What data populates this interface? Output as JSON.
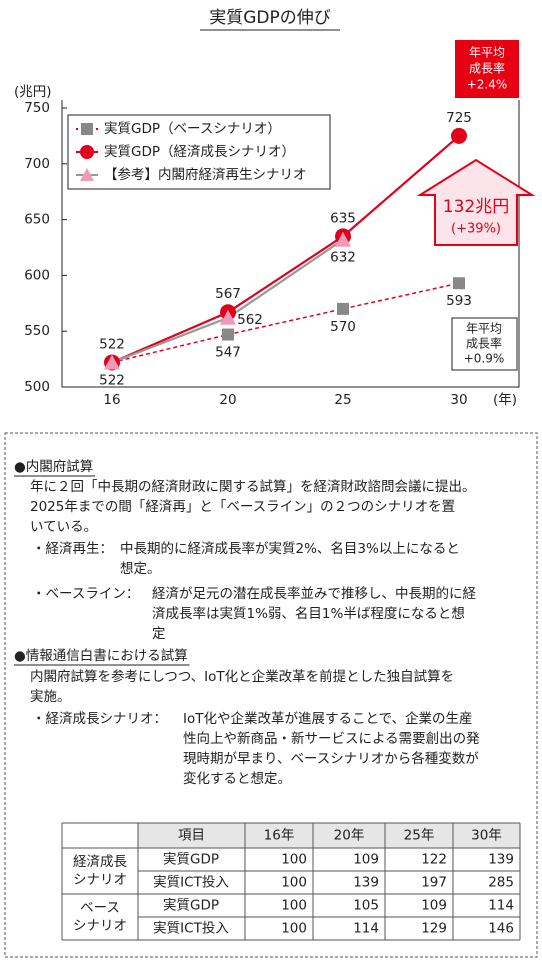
{
  "chart_data": {
    "type": "line",
    "title": "実質GDPの伸び",
    "y_label": "(兆円)",
    "x_label": "(年)",
    "categories": [
      "16",
      "20",
      "25",
      "30"
    ],
    "ylim": [
      500,
      750
    ],
    "yticks": [
      500,
      550,
      600,
      650,
      700,
      750
    ],
    "legend": "upper left",
    "series": [
      {
        "name": "実質GDP（ベースシナリオ）",
        "color": "#888888",
        "line_style": "dashed",
        "line_color": "#e0001b",
        "marker": "square",
        "values": [
          522,
          547,
          570,
          593
        ]
      },
      {
        "name": "実質GDP（経済成長シナリオ）",
        "color": "#e0001b",
        "line_style": "solid",
        "marker": "circle",
        "values": [
          522,
          567,
          635,
          725
        ]
      },
      {
        "name": "【参考】内閣府経済再生シナリオ",
        "color": "#f09ab8",
        "line_style": "solid",
        "line_color": "#999999",
        "marker": "triangle",
        "values": [
          522,
          562,
          632,
          null
        ]
      }
    ],
    "annotations": [
      {
        "lines": [
          "年平均",
          "成長率",
          "+2.4%"
        ]
      },
      {
        "lines": [
          "132兆円",
          "(+39%)"
        ]
      },
      {
        "lines": [
          "年平均",
          "成長率",
          "+0.9%"
        ]
      }
    ]
  },
  "notes": {
    "sections": [
      {
        "heading": "●内閣府試算",
        "lines": [
          "年に２回「中長期の経済財政に関する試算」を経済財政諮問会議に提出。",
          "2025年までの間「経済再」と「ベースライン」の２つのシナリオを置",
          "いている。"
        ],
        "items": [
          {
            "label": "・経済再生：",
            "lines": [
              "中長期的に経済成長率が実質2%、名目3%以上になると",
              "想定。"
            ]
          },
          {
            "label": "・ベースライン：",
            "lines": [
              "経済が足元の潜在成長率並みで推移し、中長期的に経",
              "済成長率は実質1%弱、名目1%半ば程度になると想",
              "定"
            ]
          }
        ]
      },
      {
        "heading": "●情報通信白書における試算",
        "lines": [
          "内閣府試算を参考にしつつ、IoT化と企業改革を前提とした独自試算を",
          "実施。"
        ],
        "items": [
          {
            "label": "・経済成長シナリオ：",
            "lines": [
              "IoT化や企業改革が進展することで、企業の生産",
              "性向上や新商品・新サービスによる需要創出の発",
              "現時期が早まり、ベースシナリオから各種変数が",
              "変化すると想定。"
            ]
          }
        ]
      }
    ]
  },
  "table": {
    "columns": [
      "項目",
      "16年",
      "20年",
      "25年",
      "30年"
    ],
    "groups": [
      {
        "name": [
          "経済成長",
          "シナリオ"
        ],
        "rows": [
          {
            "label": "実質GDP",
            "values": [
              100,
              109,
              122,
              139
            ]
          },
          {
            "label": "実質ICT投入",
            "values": [
              100,
              139,
              197,
              285
            ]
          }
        ]
      },
      {
        "name": [
          "ベース",
          "シナリオ"
        ],
        "rows": [
          {
            "label": "実質GDP",
            "values": [
              100,
              105,
              109,
              114
            ]
          },
          {
            "label": "実質ICT投入",
            "values": [
              100,
              114,
              129,
              146
            ]
          }
        ]
      }
    ]
  }
}
